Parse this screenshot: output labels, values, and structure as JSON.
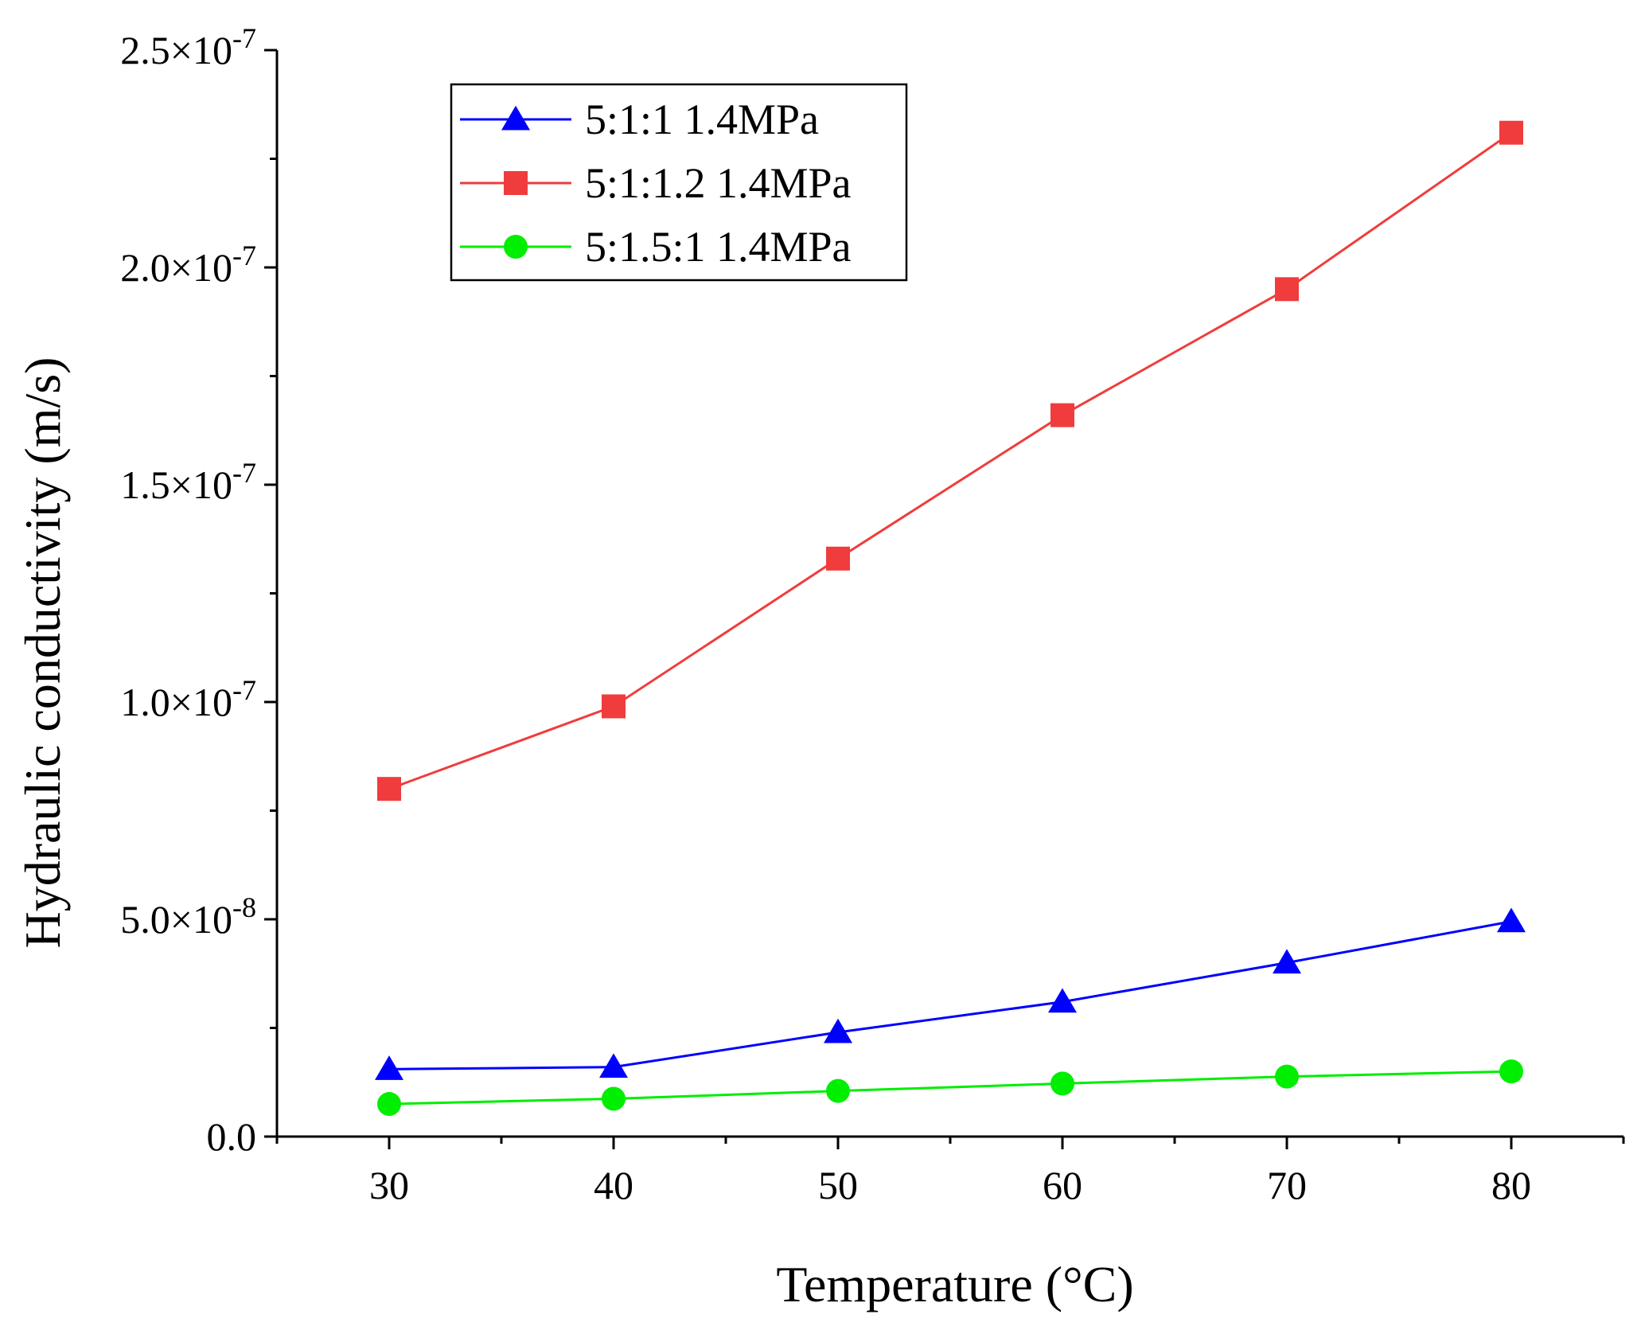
{
  "chart_data": {
    "type": "line",
    "xlabel": "Temperature (°C)",
    "ylabel": "Hydraulic conductivity (m/s)",
    "x": [
      30,
      40,
      50,
      60,
      70,
      80
    ],
    "xlim": [
      25,
      85
    ],
    "xticks": [
      30,
      40,
      50,
      60,
      70,
      80
    ],
    "xtick_labels": [
      "30",
      "40",
      "50",
      "60",
      "70",
      "80"
    ],
    "ylim": [
      0,
      2.5e-07
    ],
    "yticks": [
      {
        "value": 0.0,
        "mantissa": "0.0",
        "exponent": ""
      },
      {
        "value": 5e-08,
        "mantissa": "5.0×10",
        "exponent": "-8"
      },
      {
        "value": 1e-07,
        "mantissa": "1.0×10",
        "exponent": "-7"
      },
      {
        "value": 1.5e-07,
        "mantissa": "1.5×10",
        "exponent": "-7"
      },
      {
        "value": 2e-07,
        "mantissa": "2.0×10",
        "exponent": "-7"
      },
      {
        "value": 2.5e-07,
        "mantissa": "2.5×10",
        "exponent": "-7"
      }
    ],
    "legend_position": "top-left",
    "series": [
      {
        "name": "5:1:1 1.4MPa",
        "color": "#0000ff",
        "marker": "triangle",
        "values": [
          1.55e-08,
          1.6e-08,
          2.4e-08,
          3.1e-08,
          4e-08,
          4.95e-08
        ]
      },
      {
        "name": "5:1:1.2 1.4MPa",
        "color": "#f03c3c",
        "marker": "square",
        "values": [
          8e-08,
          9.9e-08,
          1.33e-07,
          1.66e-07,
          1.95e-07,
          2.31e-07
        ]
      },
      {
        "name": "5:1.5:1 1.4MPa",
        "color": "#00ee00",
        "marker": "circle",
        "values": [
          7.5e-09,
          8.7e-09,
          1.05e-08,
          1.22e-08,
          1.38e-08,
          1.5e-08
        ]
      }
    ]
  }
}
